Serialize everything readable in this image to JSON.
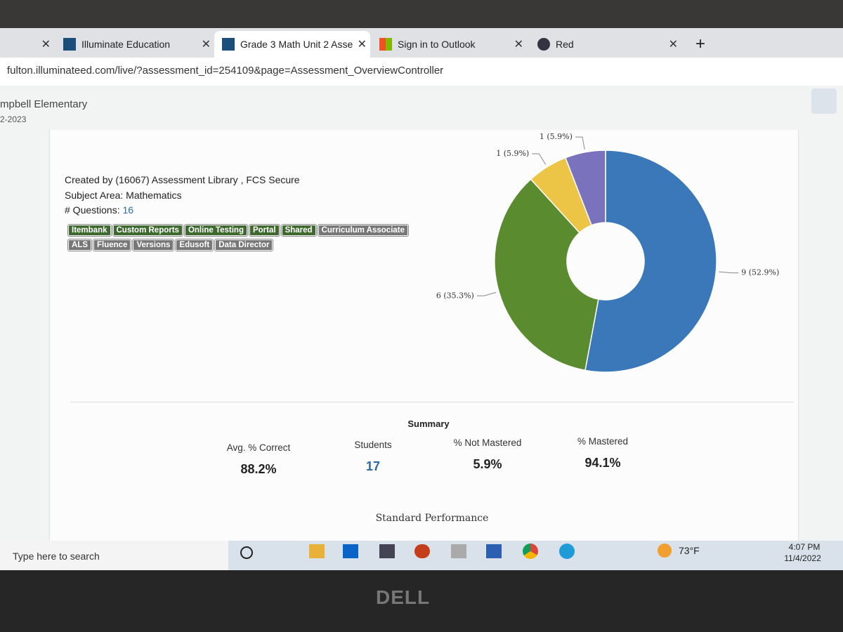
{
  "browser": {
    "tabs": [
      "Illuminate Education",
      "Grade 3 Math Unit 2 Asse",
      "Sign in to Outlook",
      "Red"
    ],
    "url": "fulton.illuminateed.com/live/?assessment_id=254109&page=Assessment_OverviewController"
  },
  "header": {
    "school": "mpbell Elementary",
    "year": "2-2023"
  },
  "assessment": {
    "created_by": "Created by (16067) Assessment Library , FCS Secure",
    "subject": "Subject Area: Mathematics",
    "questions_label": "# Questions:",
    "questions": "16",
    "tags_green": [
      "Itembank",
      "Custom Reports",
      "Online Testing",
      "Portal",
      "Shared"
    ],
    "tags_gray": [
      "Curriculum Associate",
      "ALS",
      "Fluence",
      "Versions",
      "Edusoft",
      "Data Director"
    ]
  },
  "chart": {
    "type": "donut",
    "values": [
      9,
      6,
      1,
      1
    ],
    "value_labels": [
      "9 (52.9%)",
      "6 (35.3%)",
      "1 (5.9%)",
      "1 (5.9%)"
    ],
    "colors": [
      "#3a78ba",
      "#5b8b2f",
      "#ecc446",
      "#7a72bc"
    ]
  },
  "summary": {
    "title": "Summary",
    "stats": [
      {
        "label": "Avg. % Correct",
        "value": "88.2%"
      },
      {
        "label": "Students",
        "value": "17"
      },
      {
        "label": "% Not Mastered",
        "value": "5.9%"
      },
      {
        "label": "% Mastered",
        "value": "94.1%"
      }
    ],
    "next_section": "Standard Performance"
  },
  "taskbar": {
    "search": "Type here to search",
    "weather": "73°F",
    "time": "4:07 PM",
    "date": "11/4/2022"
  },
  "bezel": {
    "logo": "DELL"
  }
}
